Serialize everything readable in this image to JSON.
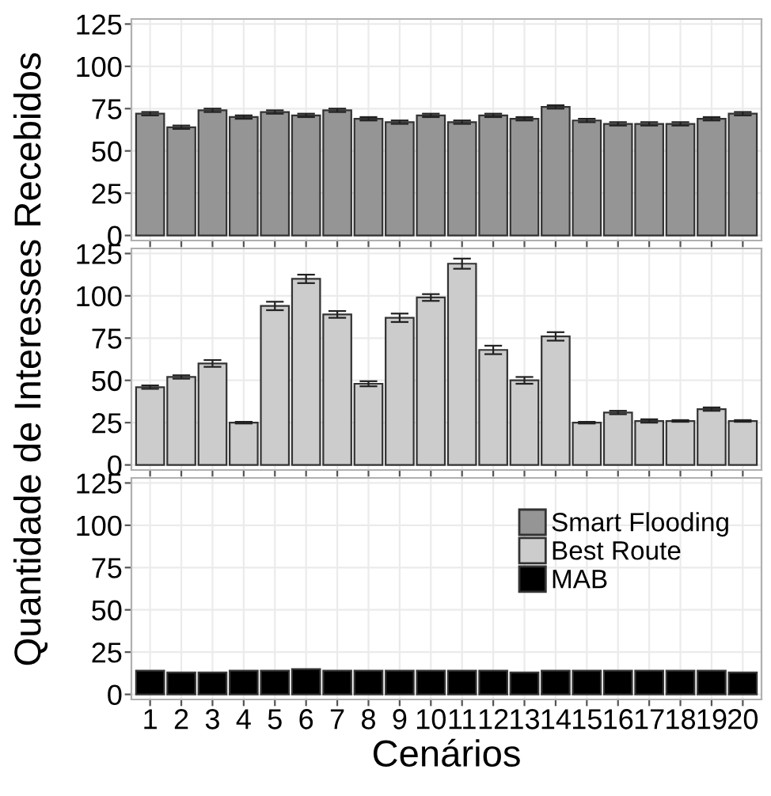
{
  "chart_data": [
    {
      "type": "bar",
      "ylabel": "Quantidade de Interesses Recebidos",
      "categories": [
        "1",
        "2",
        "3",
        "4",
        "5",
        "6",
        "7",
        "8",
        "9",
        "10",
        "11",
        "12",
        "13",
        "14",
        "15",
        "16",
        "17",
        "18",
        "19",
        "20"
      ],
      "ylim": [
        -3,
        128
      ],
      "yticks": [
        0,
        25,
        50,
        75,
        100,
        125
      ],
      "grid": true,
      "tick_labels": "y",
      "legend": "bottom right",
      "series": [
        {
          "name": "Smart Flooding",
          "color": "#959595",
          "values": [
            72,
            64,
            74,
            70,
            73,
            71,
            74,
            69,
            67,
            71,
            67,
            71,
            69,
            76,
            68,
            66,
            66,
            66,
            69,
            72
          ],
          "errors": [
            1,
            1,
            1,
            1,
            1,
            1,
            1,
            1,
            1,
            1,
            1,
            1,
            1,
            1,
            1,
            1,
            1,
            1,
            1,
            1
          ]
        }
      ]
    },
    {
      "type": "bar",
      "categories": [
        "1",
        "2",
        "3",
        "4",
        "5",
        "6",
        "7",
        "8",
        "9",
        "10",
        "11",
        "12",
        "13",
        "14",
        "15",
        "16",
        "17",
        "18",
        "19",
        "20"
      ],
      "ylim": [
        -3,
        128
      ],
      "yticks": [
        0,
        25,
        50,
        75,
        100,
        125
      ],
      "grid": true,
      "tick_labels": "y",
      "legend": "bottom right",
      "series": [
        {
          "name": "Best Route",
          "color": "#cccccc",
          "values": [
            46,
            52,
            60,
            25,
            94,
            110,
            89,
            48,
            87,
            99,
            119,
            68,
            50,
            76,
            25,
            31,
            26,
            26,
            33,
            26
          ],
          "errors": [
            1,
            1,
            2,
            0.5,
            2.5,
            2.5,
            2,
            1.5,
            2.5,
            2,
            3,
            2.5,
            2,
            2.5,
            0.5,
            1,
            1,
            0.5,
            1,
            0.5
          ]
        }
      ]
    },
    {
      "type": "bar",
      "xlabel": "Cenários",
      "categories": [
        "1",
        "2",
        "3",
        "4",
        "5",
        "6",
        "7",
        "8",
        "9",
        "10",
        "11",
        "12",
        "13",
        "14",
        "15",
        "16",
        "17",
        "18",
        "19",
        "20"
      ],
      "ylim": [
        -3,
        128
      ],
      "yticks": [
        0,
        25,
        50,
        75,
        100,
        125
      ],
      "grid": true,
      "legend": "top right",
      "series": [
        {
          "name": "MAB",
          "color": "#000000",
          "values": [
            14,
            13,
            13,
            14,
            14,
            15,
            14,
            14,
            14,
            14,
            14,
            14,
            13,
            14,
            14,
            14,
            14,
            14,
            14,
            13
          ]
        }
      ]
    }
  ]
}
